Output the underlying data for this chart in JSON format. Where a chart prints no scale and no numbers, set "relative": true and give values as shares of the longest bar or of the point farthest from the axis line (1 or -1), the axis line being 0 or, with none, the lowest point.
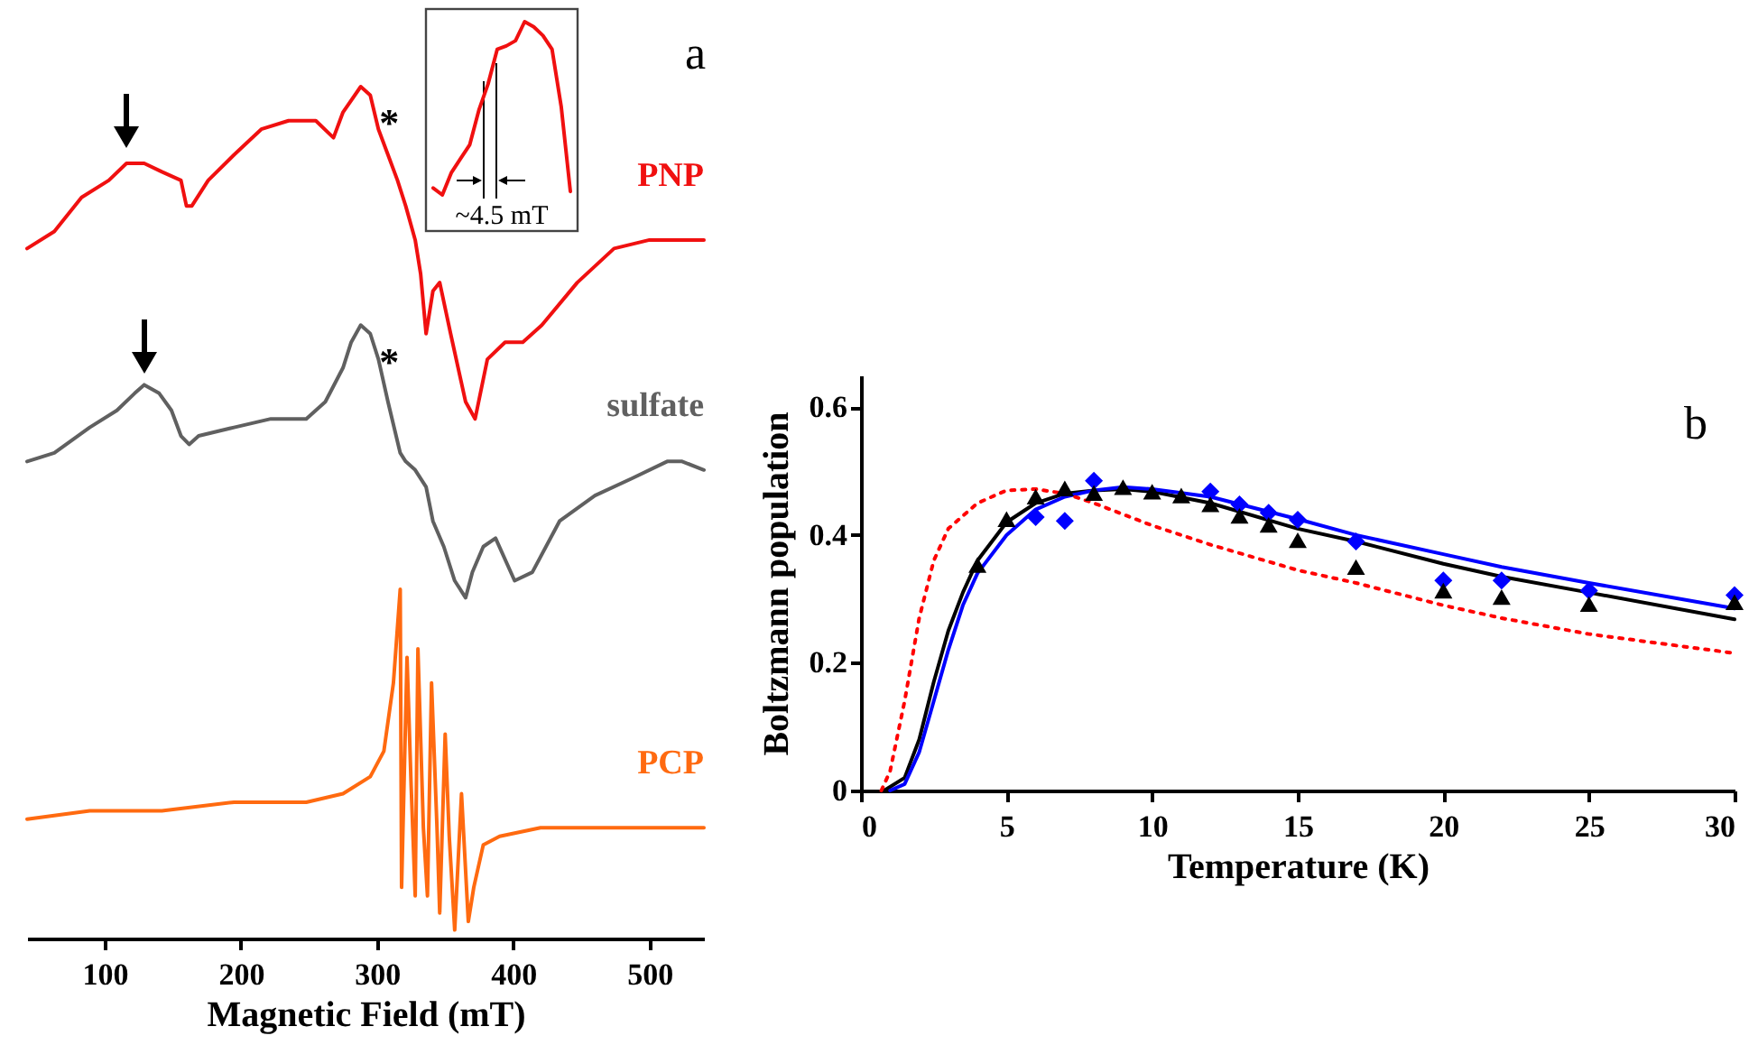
{
  "chart_data": [
    {
      "type": "line",
      "title": "a",
      "xlabel": "Magnetic Field (mT)",
      "relative": true,
      "xlim": [
        43,
        540
      ],
      "xticks": [
        100,
        200,
        300,
        400,
        500
      ],
      "grid": false,
      "annotations": [
        {
          "text": "*",
          "x": 295,
          "y": 0.99
        },
        {
          "text": "*",
          "x": 295,
          "y": 0.71
        }
      ],
      "series": [
        {
          "name": "PNP",
          "color": "#f01010",
          "x": [
            43,
            63,
            83,
            103,
            116,
            129,
            142,
            156,
            160,
            164,
            176,
            195,
            215,
            235,
            255,
            268,
            275,
            288,
            295,
            301,
            308,
            315,
            321,
            328,
            332,
            336,
            341,
            346,
            354,
            365,
            372,
            381,
            394,
            407,
            421,
            447,
            474,
            500,
            520,
            540
          ],
          "values": [
            0.81,
            0.83,
            0.87,
            0.89,
            0.91,
            0.91,
            0.9,
            0.89,
            0.86,
            0.86,
            0.89,
            0.92,
            0.95,
            0.96,
            0.96,
            0.94,
            0.97,
            1.0,
            0.99,
            0.95,
            0.92,
            0.89,
            0.86,
            0.82,
            0.78,
            0.71,
            0.76,
            0.77,
            0.71,
            0.63,
            0.61,
            0.68,
            0.7,
            0.7,
            0.72,
            0.77,
            0.81,
            0.82,
            0.82,
            0.82
          ]
        },
        {
          "name": "sulfate",
          "color": "#606060",
          "x": [
            43,
            63,
            89,
            109,
            122,
            129,
            140,
            149,
            156,
            162,
            169,
            195,
            222,
            248,
            262,
            275,
            281,
            288,
            295,
            301,
            308,
            317,
            321,
            328,
            336,
            341,
            349,
            357,
            365,
            370,
            378,
            387,
            401,
            414,
            434,
            460,
            487,
            513,
            524,
            540
          ],
          "values": [
            0.56,
            0.57,
            0.6,
            0.62,
            0.64,
            0.65,
            0.64,
            0.62,
            0.59,
            0.58,
            0.59,
            0.6,
            0.61,
            0.61,
            0.63,
            0.67,
            0.7,
            0.72,
            0.71,
            0.68,
            0.63,
            0.57,
            0.56,
            0.55,
            0.53,
            0.49,
            0.46,
            0.42,
            0.4,
            0.43,
            0.46,
            0.47,
            0.42,
            0.43,
            0.49,
            0.52,
            0.54,
            0.56,
            0.56,
            0.55
          ]
        },
        {
          "name": "PCP",
          "color": "#ff6a10",
          "x": [
            43,
            89,
            142,
            195,
            248,
            275,
            295,
            305,
            312,
            317,
            318,
            322,
            325,
            328,
            330,
            334,
            337,
            340,
            344,
            346,
            350,
            353,
            357,
            362,
            367,
            371,
            378,
            390,
            420,
            464,
            509,
            540
          ],
          "values": [
            0.14,
            0.15,
            0.15,
            0.16,
            0.16,
            0.17,
            0.19,
            0.22,
            0.3,
            0.41,
            0.06,
            0.33,
            0.18,
            0.05,
            0.34,
            0.13,
            0.05,
            0.3,
            0.13,
            0.03,
            0.24,
            0.12,
            0.01,
            0.17,
            0.02,
            0.06,
            0.11,
            0.12,
            0.13,
            0.13,
            0.13,
            0.13
          ]
        }
      ]
    },
    {
      "type": "line",
      "relative": true,
      "categories": [
        null,
        null,
        null,
        null,
        null,
        null,
        null,
        null,
        null,
        null,
        null,
        null,
        null,
        null,
        null,
        null
      ],
      "annotations": [
        "~4.5 mT"
      ],
      "series": [
        {
          "color": "#f01010",
          "values": [
            0.04,
            0,
            0.13,
            0.21,
            0.29,
            0.49,
            0.64,
            0.84,
            0.86,
            0.89,
            1,
            0.97,
            0.92,
            0.84,
            0.51,
            0.02
          ]
        }
      ]
    },
    {
      "type": "line",
      "title": "b",
      "xlabel": "Temperature (K)",
      "ylabel": "Boltzmann population",
      "xlim": [
        0,
        30
      ],
      "xticks": [
        0,
        5,
        10,
        15,
        20,
        25,
        30
      ],
      "ylim": [
        0,
        0.65
      ],
      "yticks": [
        {
          "value": 0,
          "label": "0"
        },
        0.2,
        0.4,
        0.6
      ],
      "grid": false,
      "series": [
        {
          "color": "#000000",
          "line_style": "solid",
          "x": [
            0.8,
            1.5,
            2,
            2.5,
            3,
            3.5,
            4,
            5,
            6,
            7,
            8,
            9,
            10,
            12,
            15,
            17,
            20,
            22,
            25,
            30
          ],
          "values": [
            0,
            0.02,
            0.08,
            0.17,
            0.25,
            0.31,
            0.36,
            0.42,
            0.45,
            0.465,
            0.47,
            0.472,
            0.468,
            0.45,
            0.41,
            0.39,
            0.355,
            0.335,
            0.31,
            0.268
          ]
        },
        {
          "color": "#0000ff",
          "line_style": "solid",
          "x": [
            1,
            1.5,
            2,
            2.5,
            3,
            3.5,
            4,
            5,
            6,
            7,
            8,
            9,
            10,
            12,
            15,
            17,
            20,
            22,
            25,
            30
          ],
          "values": [
            0,
            0.01,
            0.06,
            0.14,
            0.22,
            0.29,
            0.34,
            0.4,
            0.44,
            0.46,
            0.47,
            0.475,
            0.472,
            0.46,
            0.425,
            0.4,
            0.37,
            0.35,
            0.325,
            0.285
          ]
        },
        {
          "color": "#ff0000",
          "line_style": "dotted",
          "x": [
            0.7,
            1,
            1.5,
            2,
            2.5,
            3,
            4,
            5,
            6,
            7,
            8,
            10,
            12,
            15,
            17,
            20,
            22,
            25,
            30
          ],
          "values": [
            0,
            0.03,
            0.14,
            0.27,
            0.36,
            0.41,
            0.45,
            0.47,
            0.472,
            0.465,
            0.45,
            0.415,
            0.385,
            0.345,
            0.325,
            0.29,
            0.27,
            0.245,
            0.215
          ]
        },
        {
          "type": "scatter",
          "color": "#0000ff",
          "marker": "diamond",
          "x": [
            6,
            7,
            8,
            9,
            10,
            12,
            13,
            14,
            15,
            17,
            20,
            22,
            25,
            30
          ],
          "values": [
            0.428,
            0.422,
            0.485,
            null,
            null,
            0.468,
            0.448,
            0.435,
            0.424,
            0.39,
            0.329,
            0.329,
            0.313,
            0.306
          ]
        },
        {
          "type": "scatter",
          "color": "#000000",
          "marker": "triangle",
          "x": [
            4,
            5,
            6,
            7,
            8,
            9,
            10,
            11,
            12,
            13,
            14,
            15,
            17,
            20,
            22,
            25,
            30
          ],
          "values": [
            0.353,
            0.425,
            0.46,
            0.473,
            0.466,
            0.475,
            0.468,
            0.462,
            0.448,
            0.43,
            0.416,
            0.392,
            0.35,
            0.313,
            0.303,
            0.292,
            0.295
          ]
        }
      ]
    }
  ]
}
